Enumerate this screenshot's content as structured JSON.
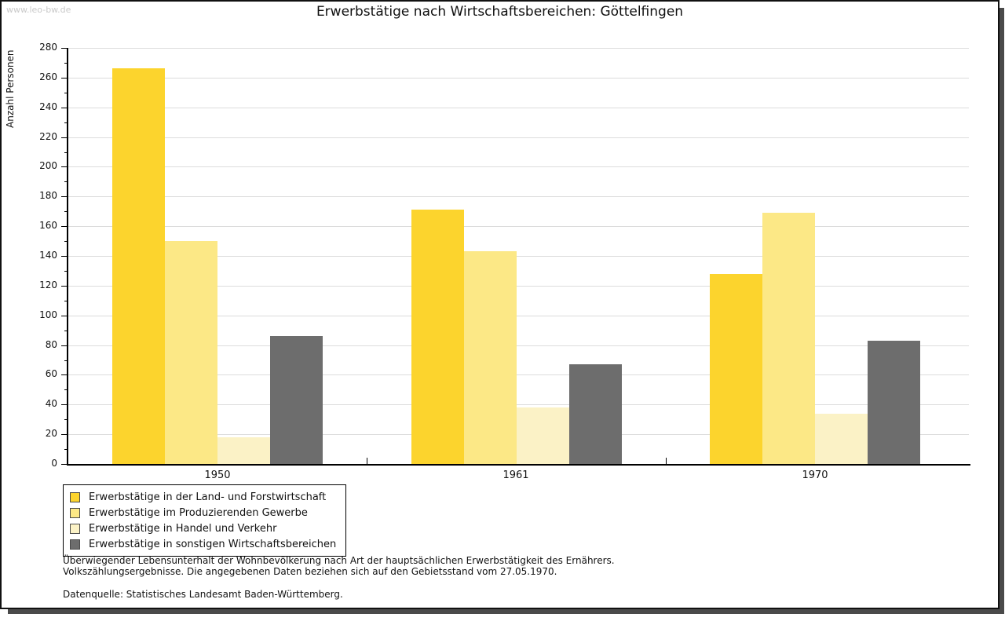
{
  "watermark": "www.leo-bw.de",
  "title": "Erwerbstätige nach Wirtschaftsbereichen: Göttelfingen",
  "chart_data": {
    "type": "bar",
    "title": "Erwerbstätige nach Wirtschaftsbereichen: Göttelfingen",
    "xlabel": "",
    "ylabel": "Anzahl Personen",
    "ylim": [
      0,
      280
    ],
    "ytick_step": 20,
    "yminor_step": 10,
    "grid": true,
    "legend_position": "bottom-left",
    "categories": [
      "1950",
      "1961",
      "1970"
    ],
    "series": [
      {
        "name": "Erwerbstätige in der Land- und Forstwirtschaft",
        "color": "#fcd42d",
        "values": [
          266,
          171,
          128
        ]
      },
      {
        "name": "Erwerbstätige im Produzierenden Gewerbe",
        "color": "#fce886",
        "values": [
          150,
          143,
          169
        ]
      },
      {
        "name": "Erwerbstätige in Handel und Verkehr",
        "color": "#fbf2c6",
        "values": [
          18,
          38,
          34
        ]
      },
      {
        "name": "Erwerbstätige in sonstigen Wirtschaftsbereichen",
        "color": "#6d6d6d",
        "values": [
          86,
          67,
          83
        ]
      }
    ]
  },
  "footer": {
    "line1": "Überwiegender Lebensunterhalt der Wohnbevölkerung nach Art der hauptsächlichen Erwerbstätigkeit des Ernährers.",
    "line2": "Volkszählungsergebnisse. Die angegebenen Daten beziehen sich auf den Gebietsstand vom 27.05.1970.",
    "source": "Datenquelle: Statistisches Landesamt Baden-Württemberg."
  }
}
